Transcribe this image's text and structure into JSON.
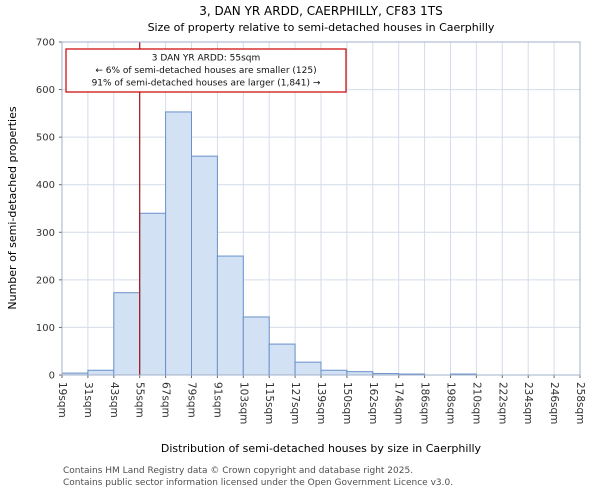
{
  "page": {
    "footer_line1": "Contains HM Land Registry data © Crown copyright and database right 2025.",
    "footer_line2": "Contains public sector information licensed under the Open Government Licence v3.0."
  },
  "chart_data": {
    "type": "bar",
    "title": "3, DAN YR ARDD, CAERPHILLY, CF83 1TS",
    "subtitle": "Size of property relative to semi-detached houses in Caerphilly",
    "xlabel": "Distribution of semi-detached houses by size in Caerphilly",
    "ylabel": "Number of semi-detached properties",
    "ylim": [
      0,
      700
    ],
    "yticks": [
      0,
      100,
      200,
      300,
      400,
      500,
      600,
      700
    ],
    "xtick_labels": [
      "19sqm",
      "31sqm",
      "43sqm",
      "55sqm",
      "67sqm",
      "79sqm",
      "91sqm",
      "103sqm",
      "115sqm",
      "127sqm",
      "139sqm",
      "150sqm",
      "162sqm",
      "174sqm",
      "186sqm",
      "198sqm",
      "210sqm",
      "222sqm",
      "234sqm",
      "246sqm",
      "258sqm"
    ],
    "values": [
      4,
      10,
      173,
      340,
      553,
      460,
      250,
      122,
      65,
      27,
      10,
      7,
      3,
      2,
      0,
      2,
      0,
      0,
      0,
      0
    ],
    "grid": true,
    "legend": null,
    "marker_line": {
      "at_label": "55sqm",
      "bin_index": 3,
      "color": "#a31515"
    },
    "annotation": {
      "lines": [
        "3 DAN YR ARDD: 55sqm",
        "← 6% of semi-detached houses are smaller (125)",
        "91% of semi-detached houses are larger (1,841) →"
      ],
      "border_color": "#cc0000"
    },
    "colors": {
      "bar_fill": "#d3e1f4",
      "bar_stroke": "#6991c9",
      "grid": "#d4dcea",
      "spine": "#9fb0c8",
      "tick_text": "#333333"
    }
  }
}
